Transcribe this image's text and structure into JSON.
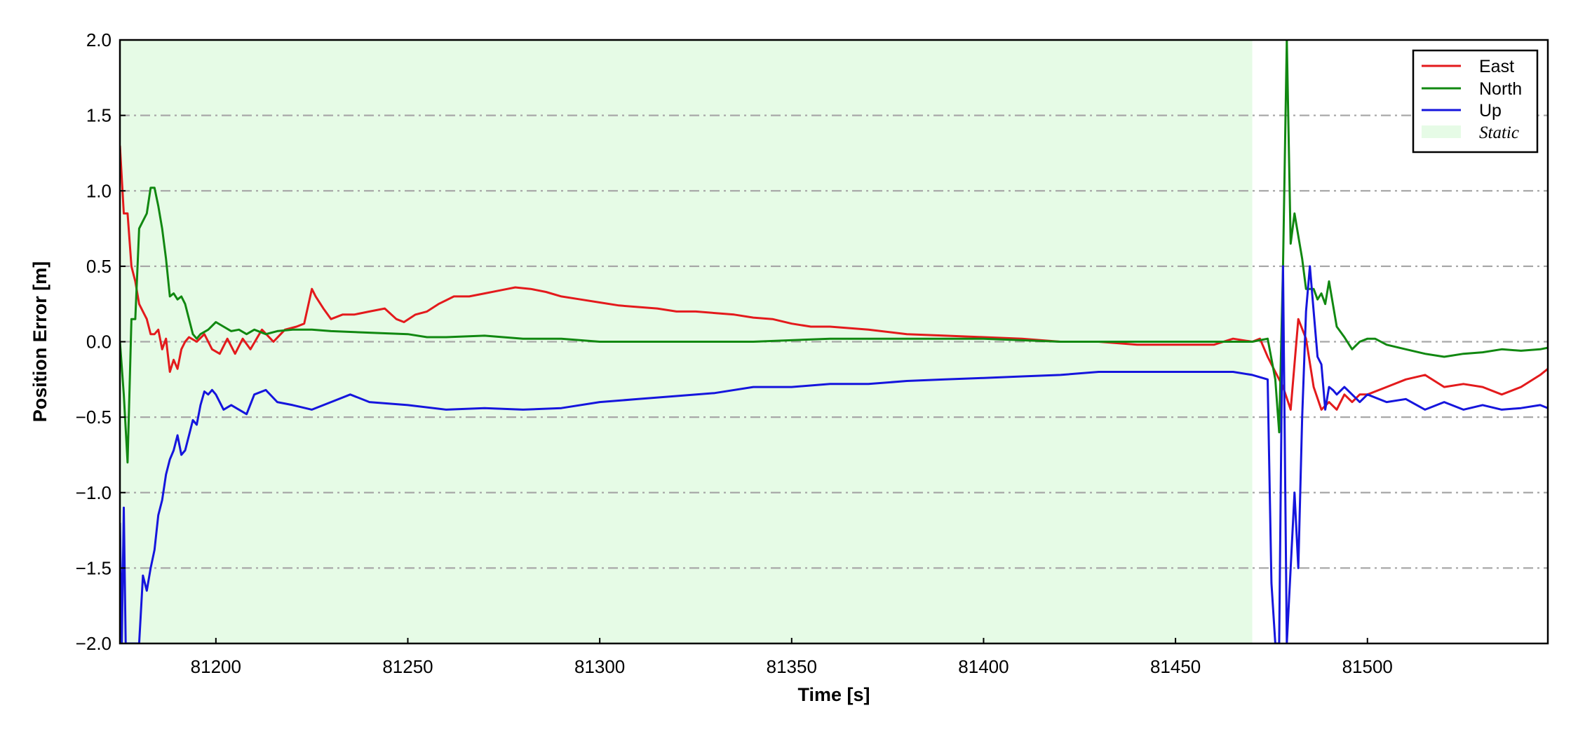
{
  "chart_data": {
    "type": "line",
    "xlabel": "Time [s]",
    "ylabel": "Position Error [m]",
    "xlim": [
      81175,
      81547
    ],
    "ylim": [
      -2.0,
      2.0
    ],
    "x_ticks": [
      81200,
      81250,
      81300,
      81350,
      81400,
      81450,
      81500
    ],
    "x_tick_labels": [
      "81200",
      "81250",
      "81300",
      "81350",
      "81400",
      "81450",
      "81500"
    ],
    "y_ticks": [
      -2.0,
      -1.5,
      -1.0,
      -0.5,
      0.0,
      0.5,
      1.0,
      1.5,
      2.0
    ],
    "y_tick_labels": [
      "−2.0",
      "−1.5",
      "−1.0",
      "−0.5",
      "0.0",
      "0.5",
      "1.0",
      "1.5",
      "2.0"
    ],
    "grid": "horizontal dash-dot",
    "legend_position": "top-right",
    "shaded_region": {
      "name": "Static",
      "x": [
        81175,
        81470
      ],
      "color": "#e6fbe6"
    },
    "series": [
      {
        "name": "East",
        "color": "#e31a1c",
        "x": [
          81175,
          81176,
          81177,
          81178,
          81179,
          81180,
          81181,
          81182,
          81183,
          81184,
          81185,
          81186,
          81187,
          81188,
          81189,
          81190,
          81191,
          81192,
          81193,
          81195,
          81197,
          81199,
          81201,
          81203,
          81205,
          81207,
          81209,
          81212,
          81215,
          81218,
          81221,
          81223,
          81225,
          81226,
          81228,
          81230,
          81233,
          81236,
          81240,
          81244,
          81247,
          81249,
          81252,
          81255,
          81258,
          81262,
          81266,
          81270,
          81274,
          81278,
          81282,
          81286,
          81290,
          81295,
          81300,
          81305,
          81310,
          81315,
          81320,
          81325,
          81330,
          81335,
          81340,
          81345,
          81350,
          81355,
          81360,
          81370,
          81380,
          81390,
          81400,
          81410,
          81420,
          81430,
          81440,
          81450,
          81460,
          81465,
          81470,
          81472,
          81474,
          81476,
          81478,
          81480,
          81482,
          81484,
          81486,
          81488,
          81490,
          81492,
          81494,
          81496,
          81498,
          81500,
          81505,
          81510,
          81515,
          81520,
          81525,
          81530,
          81535,
          81540,
          81545,
          81547
        ],
        "y": [
          1.3,
          0.85,
          0.85,
          0.5,
          0.4,
          0.25,
          0.2,
          0.15,
          0.05,
          0.05,
          0.08,
          -0.05,
          0.02,
          -0.2,
          -0.12,
          -0.18,
          -0.05,
          0.0,
          0.03,
          0.0,
          0.05,
          -0.05,
          -0.08,
          0.02,
          -0.08,
          0.02,
          -0.05,
          0.08,
          0.0,
          0.08,
          0.1,
          0.12,
          0.35,
          0.3,
          0.22,
          0.15,
          0.18,
          0.18,
          0.2,
          0.22,
          0.15,
          0.13,
          0.18,
          0.2,
          0.25,
          0.3,
          0.3,
          0.32,
          0.34,
          0.36,
          0.35,
          0.33,
          0.3,
          0.28,
          0.26,
          0.24,
          0.23,
          0.22,
          0.2,
          0.2,
          0.19,
          0.18,
          0.16,
          0.15,
          0.12,
          0.1,
          0.1,
          0.08,
          0.05,
          0.04,
          0.03,
          0.02,
          0.0,
          0.0,
          -0.02,
          -0.02,
          -0.02,
          0.02,
          0.0,
          0.02,
          -0.1,
          -0.2,
          -0.3,
          -0.45,
          0.15,
          0.02,
          -0.3,
          -0.45,
          -0.4,
          -0.45,
          -0.35,
          -0.4,
          -0.35,
          -0.35,
          -0.3,
          -0.25,
          -0.22,
          -0.3,
          -0.28,
          -0.3,
          -0.35,
          -0.3,
          -0.22,
          -0.18
        ]
      },
      {
        "name": "North",
        "color": "#118811",
        "x": [
          81175,
          81176,
          81177,
          81178,
          81179,
          81180,
          81181,
          81182,
          81183,
          81184,
          81185,
          81186,
          81187,
          81188,
          81189,
          81190,
          81191,
          81192,
          81193,
          81194,
          81195,
          81196,
          81198,
          81200,
          81202,
          81204,
          81206,
          81208,
          81210,
          81213,
          81216,
          81220,
          81225,
          81230,
          81240,
          81250,
          81255,
          81260,
          81270,
          81280,
          81290,
          81300,
          81320,
          81340,
          81360,
          81380,
          81400,
          81420,
          81440,
          81460,
          81470,
          81474,
          81476,
          81477,
          81478,
          81479,
          81480,
          81481,
          81482,
          81483,
          81484,
          81485,
          81486,
          81487,
          81488,
          81489,
          81490,
          81491,
          81492,
          81494,
          81496,
          81498,
          81500,
          81502,
          81505,
          81510,
          81515,
          81520,
          81525,
          81530,
          81535,
          81540,
          81545,
          81547
        ],
        "y": [
          0.0,
          -0.35,
          -0.8,
          0.15,
          0.15,
          0.75,
          0.8,
          0.85,
          1.02,
          1.02,
          0.9,
          0.75,
          0.55,
          0.3,
          0.32,
          0.28,
          0.3,
          0.25,
          0.15,
          0.05,
          0.02,
          0.05,
          0.08,
          0.13,
          0.1,
          0.07,
          0.08,
          0.05,
          0.08,
          0.05,
          0.07,
          0.08,
          0.08,
          0.07,
          0.06,
          0.05,
          0.03,
          0.03,
          0.04,
          0.02,
          0.02,
          0.0,
          0.0,
          0.0,
          0.02,
          0.02,
          0.02,
          0.0,
          0.0,
          0.0,
          0.0,
          0.02,
          -0.25,
          -0.6,
          0.5,
          2.0,
          0.65,
          0.85,
          0.7,
          0.55,
          0.35,
          0.35,
          0.35,
          0.28,
          0.32,
          0.25,
          0.4,
          0.25,
          0.1,
          0.03,
          -0.05,
          0.0,
          0.02,
          0.02,
          -0.02,
          -0.05,
          -0.08,
          -0.1,
          -0.08,
          -0.07,
          -0.05,
          -0.06,
          -0.05,
          -0.04
        ]
      },
      {
        "name": "Up",
        "color": "#1515dd",
        "x": [
          81175,
          81175.5,
          81176,
          81176.5,
          81177,
          81178,
          81179,
          81180,
          81181,
          81182,
          81183,
          81184,
          81185,
          81186,
          81187,
          81188,
          81189,
          81190,
          81191,
          81192,
          81193,
          81194,
          81195,
          81196,
          81197,
          81198,
          81199,
          81200,
          81202,
          81204,
          81206,
          81208,
          81210,
          81213,
          81216,
          81220,
          81225,
          81230,
          81235,
          81240,
          81250,
          81260,
          81270,
          81280,
          81290,
          81300,
          81310,
          81320,
          81330,
          81340,
          81350,
          81360,
          81370,
          81380,
          81390,
          81400,
          81410,
          81420,
          81430,
          81440,
          81450,
          81460,
          81465,
          81470,
          81474,
          81475,
          81476,
          81477,
          81478,
          81479,
          81480,
          81481,
          81482,
          81483,
          81484,
          81485,
          81486,
          81487,
          81488,
          81489,
          81490,
          81491,
          81492,
          81494,
          81496,
          81498,
          81500,
          81505,
          81510,
          81515,
          81520,
          81525,
          81530,
          81535,
          81540,
          81545,
          81547
        ],
        "y": [
          -1.2,
          -2.0,
          -1.1,
          -2.0,
          -2.0,
          -2.0,
          -2.0,
          -2.0,
          -1.55,
          -1.65,
          -1.5,
          -1.38,
          -1.15,
          -1.05,
          -0.88,
          -0.78,
          -0.72,
          -0.62,
          -0.75,
          -0.72,
          -0.62,
          -0.52,
          -0.55,
          -0.42,
          -0.33,
          -0.35,
          -0.32,
          -0.35,
          -0.45,
          -0.42,
          -0.45,
          -0.48,
          -0.35,
          -0.32,
          -0.4,
          -0.42,
          -0.45,
          -0.4,
          -0.35,
          -0.4,
          -0.42,
          -0.45,
          -0.44,
          -0.45,
          -0.44,
          -0.4,
          -0.38,
          -0.36,
          -0.34,
          -0.3,
          -0.3,
          -0.28,
          -0.28,
          -0.26,
          -0.25,
          -0.24,
          -0.23,
          -0.22,
          -0.2,
          -0.2,
          -0.2,
          -0.2,
          -0.2,
          -0.22,
          -0.25,
          -1.6,
          -2.0,
          -2.0,
          0.5,
          -2.0,
          -1.5,
          -1.0,
          -1.5,
          -0.5,
          0.2,
          0.5,
          0.2,
          -0.1,
          -0.15,
          -0.45,
          -0.3,
          -0.32,
          -0.35,
          -0.3,
          -0.35,
          -0.4,
          -0.35,
          -0.4,
          -0.38,
          -0.45,
          -0.4,
          -0.45,
          -0.42,
          -0.45,
          -0.44,
          -0.42,
          -0.44
        ]
      }
    ]
  }
}
